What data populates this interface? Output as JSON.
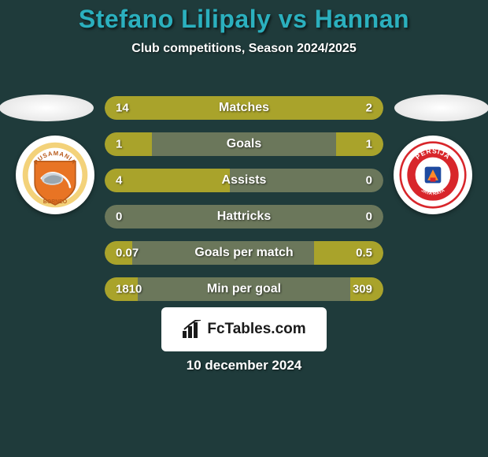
{
  "background_color": "#1f3b3b",
  "title": "Stefano Lilipaly vs Hannan",
  "title_color": "#2bb0be",
  "subtitle": "Club competitions, Season 2024/2025",
  "subtitle_color": "#ffffff",
  "text_color": "#ffffff",
  "bar_track_color": "#7e8764",
  "bar_left_color": "#a9a32b",
  "bar_right_color": "#a9a32b",
  "rows": [
    {
      "label": "Matches",
      "left": "14",
      "right": "2",
      "left_pct": 74,
      "right_pct": 26
    },
    {
      "label": "Goals",
      "left": "1",
      "right": "1",
      "left_pct": 17,
      "right_pct": 17
    },
    {
      "label": "Assists",
      "left": "4",
      "right": "0",
      "left_pct": 45,
      "right_pct": 0
    },
    {
      "label": "Hattricks",
      "left": "0",
      "right": "0",
      "left_pct": 0,
      "right_pct": 0
    },
    {
      "label": "Goals per match",
      "left": "0.07",
      "right": "0.5",
      "left_pct": 10,
      "right_pct": 25
    },
    {
      "label": "Min per goal",
      "left": "1810",
      "right": "309",
      "left_pct": 12,
      "right_pct": 12
    }
  ],
  "fctables": {
    "label": "FcTables.com",
    "bg": "#ffffff",
    "text": "#1a1a1a"
  },
  "date": "10 december 2024",
  "left_club": {
    "name": "Pusamania Borneo",
    "shield_bg": "#e87424",
    "shield_border": "#b85a1a",
    "ring_text": "PUSAMANIA",
    "ring_bottom": "BORNEO",
    "ring_color": "#f3d27a"
  },
  "right_club": {
    "name": "Persija",
    "outer_ring": "#ffffff",
    "inner_ring": "#d8262b",
    "center": "#ffffff",
    "top_text": "PERSIJA",
    "bottom_text": "JAKARTA"
  }
}
